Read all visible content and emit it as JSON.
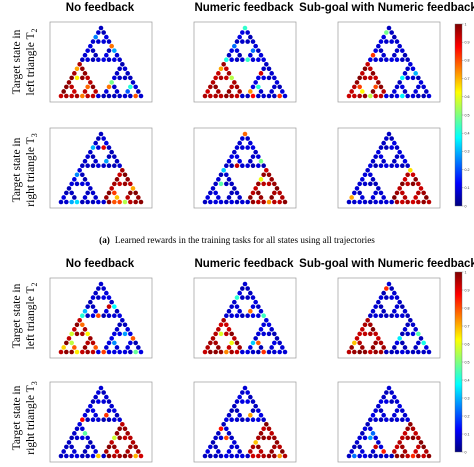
{
  "figure": {
    "column_titles": [
      "No feedback",
      "Numeric feedback",
      "Sub-goal with Numeric feedback"
    ],
    "row_labels": [
      {
        "line1": "Target state in",
        "line2": "left triangle T",
        "sub": "2"
      },
      {
        "line1": "Target state in",
        "line2": "right triangle T",
        "sub": "3"
      }
    ],
    "caption": {
      "tag": "(a)",
      "text": "Learned rewards in the training tasks for all states using all trajectories"
    }
  },
  "chart_data": [
    {
      "type": "heatmap",
      "title": "",
      "columns": [
        "No feedback",
        "Numeric feedback",
        "Sub-goal with Numeric feedback"
      ],
      "rows": [
        "Target state in left triangle T2",
        "Target state in right triangle T3"
      ],
      "layout": "sierpinski-triangle-states",
      "colormap": "jet",
      "colorbar": {
        "range": [
          0,
          1
        ],
        "ticks": [
          "1",
          "0.9",
          "0.8",
          "0.7",
          "0.6",
          "0.5",
          "0.4",
          "0.3",
          "0.2",
          "0.1",
          "0"
        ]
      },
      "description": "Learned reward per state; target region (red) in bottom-left triangle for row 1 and bottom-right triangle for row 2",
      "target_regions": [
        "left",
        "right"
      ]
    },
    {
      "type": "heatmap",
      "title": "",
      "columns": [
        "No feedback",
        "Numeric feedback",
        "Sub-goal with Numeric feedback"
      ],
      "rows": [
        "Target state in left triangle T2",
        "Target state in right triangle T3"
      ],
      "layout": "sierpinski-triangle-states",
      "colormap": "jet",
      "colorbar": {
        "range": [
          0,
          1
        ],
        "ticks": [
          "1",
          "0.9",
          "0.8",
          "0.7",
          "0.6",
          "0.5",
          "0.4",
          "0.3",
          "0.2",
          "0.1",
          "0"
        ]
      },
      "target_regions": [
        "left",
        "right"
      ]
    }
  ]
}
